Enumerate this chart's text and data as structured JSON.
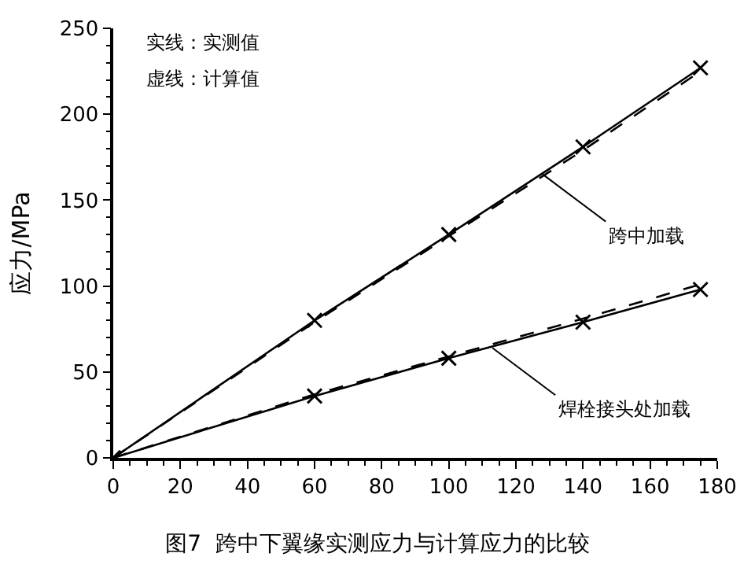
{
  "chart_data": {
    "type": "line",
    "title": "图7  跨中下翼缘实测应力与计算应力的比较",
    "ylabel": "应力/MPa",
    "x": [
      0,
      60,
      100,
      140,
      175
    ],
    "series": [
      {
        "color": "#000000",
        "values": [
          0,
          80,
          130,
          181,
          227
        ],
        "line_style": "solid",
        "marker": "cross"
      },
      {
        "color": "#000000",
        "values": [
          0,
          79,
          129,
          179,
          225
        ],
        "line_style": "dashed",
        "marker": "none"
      },
      {
        "color": "#000000",
        "values": [
          0,
          36,
          58,
          79,
          98
        ],
        "line_style": "solid",
        "marker": "cross"
      },
      {
        "color": "#000000",
        "values": [
          0,
          37,
          59,
          81,
          101
        ],
        "line_style": "dashed",
        "marker": "none"
      }
    ],
    "annotations": [
      "实线：实测值",
      "虚线：计算值",
      {
        "text": "跨中加载",
        "x": 128,
        "y": 165
      },
      {
        "text": "焊栓接头处加载",
        "x": 113,
        "y": 64
      }
    ],
    "xlim": [
      0,
      180
    ],
    "xticks": [
      0,
      20,
      40,
      60,
      80,
      100,
      120,
      140,
      160,
      180
    ],
    "ylim": [
      0,
      250
    ],
    "yticks": [
      0,
      50,
      100,
      150,
      200,
      250
    ]
  }
}
